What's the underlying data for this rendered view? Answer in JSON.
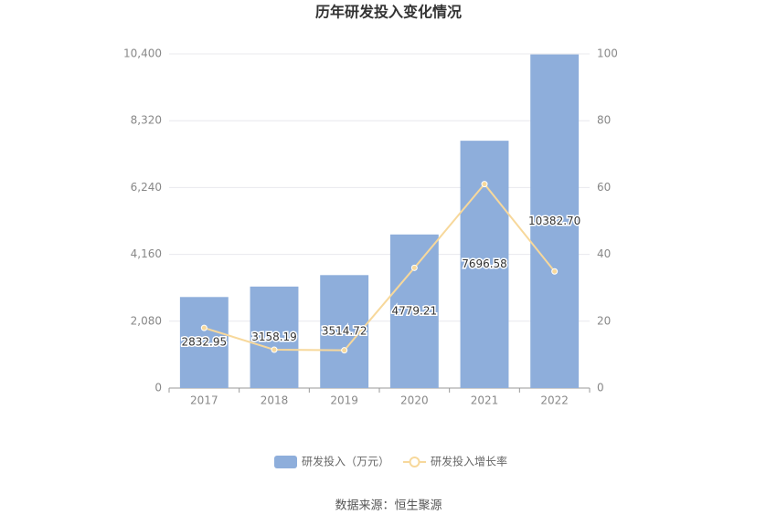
{
  "chart_data": {
    "type": "bar_line",
    "title": "历年研发投入变化情况",
    "categories": [
      "2017",
      "2018",
      "2019",
      "2020",
      "2021",
      "2022"
    ],
    "series": [
      {
        "name": "研发投入（万元）",
        "type": "bar",
        "color": "#8eaedb",
        "axis": "y",
        "values": [
          2832.95,
          3158.19,
          3514.72,
          4779.21,
          7696.58,
          10382.7
        ],
        "value_labels": [
          "2832.95",
          "3158.19",
          "3514.72",
          "4779.21",
          "7696.58",
          "10382.70"
        ]
      },
      {
        "name": "研发投入增长率",
        "type": "line",
        "color": "#f7d89b",
        "axis": "y2",
        "values": [
          18,
          11.48,
          11.29,
          35.98,
          61.04,
          34.9
        ]
      }
    ],
    "ylim": [
      0,
      10400
    ],
    "yticks": [
      0,
      {
        "value": 2080,
        "label": "2,080"
      },
      {
        "value": 4160,
        "label": "4,160"
      },
      {
        "value": 6240,
        "label": "6,240"
      },
      {
        "value": 8320,
        "label": "8,320"
      },
      {
        "value": 10400,
        "label": "10,400"
      }
    ],
    "y2lim": [
      0,
      100
    ],
    "y2ticks": [
      0,
      20,
      40,
      60,
      80,
      100
    ],
    "grid": true,
    "legend": "bottom",
    "source": "数据来源：恒生聚源"
  }
}
